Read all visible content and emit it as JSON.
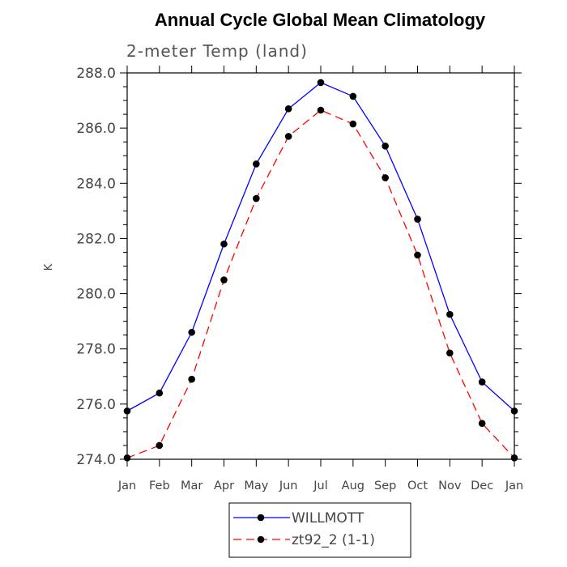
{
  "chart_data": {
    "type": "line",
    "title": "Annual Cycle Global Mean Climatology",
    "subtitle": "2-meter Temp (land)",
    "xlabel": "",
    "ylabel": "K",
    "categories": [
      "Jan",
      "Feb",
      "Mar",
      "Apr",
      "May",
      "Jun",
      "Jul",
      "Aug",
      "Sep",
      "Oct",
      "Nov",
      "Dec",
      "Jan"
    ],
    "ylim": [
      274.0,
      288.0
    ],
    "yticks": [
      "274.0",
      "276.0",
      "278.0",
      "280.0",
      "282.0",
      "284.0",
      "286.0",
      "288.0"
    ],
    "legend_position": "bottom-center",
    "series": [
      {
        "name": "WILLMOTT",
        "color": "#0000ff",
        "dash": "solid",
        "values": [
          275.75,
          276.4,
          278.6,
          281.8,
          284.7,
          286.7,
          287.65,
          287.15,
          285.35,
          282.7,
          279.25,
          276.8,
          275.75
        ]
      },
      {
        "name": "zt92_2 (1-1)",
        "color": "#ff0000",
        "dash": "dashed",
        "values": [
          274.05,
          274.5,
          276.9,
          280.5,
          283.45,
          285.7,
          286.65,
          286.15,
          284.2,
          281.4,
          277.85,
          275.3,
          274.05
        ]
      }
    ]
  }
}
